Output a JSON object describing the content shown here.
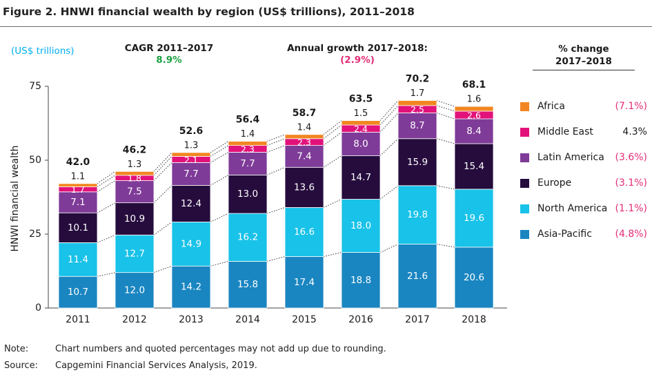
{
  "figure": {
    "title": "Figure 2. HNWI financial wealth by region (US$ trillions), 2011–2018",
    "units": "(US$ trillions)"
  },
  "headers": {
    "cagr_label": "CAGR 2011–2017",
    "cagr_value": "8.9%",
    "annual_label": "Annual growth 2017–2018:",
    "annual_value": "(2.9%)",
    "pct_change_line1": "% change",
    "pct_change_line2": "2017–2018"
  },
  "notes": {
    "note_label": "Note:",
    "note_text": "Chart numbers and quoted percentages may not add up due to rounding.",
    "source_label": "Source:",
    "source_text": "Capgemini Financial Services Analysis, 2019."
  },
  "colors": {
    "Asia-Pacific": "#1a86c1",
    "North America": "#18c2e8",
    "Europe": "#260c3d",
    "Latin America": "#7f3b98",
    "Middle East": "#e2127a",
    "Africa": "#f28621",
    "cagr_green": "#1aa142",
    "decline_red": "#e32b77",
    "units_blue": "#00aeef"
  },
  "chart_data": {
    "type": "bar",
    "stacked": true,
    "categories": [
      "2011",
      "2012",
      "2013",
      "2014",
      "2015",
      "2016",
      "2017",
      "2018"
    ],
    "ylabel": "HNWI financial wealth",
    "ylim": [
      0,
      75
    ],
    "yticks": [
      0,
      25,
      50,
      75
    ],
    "totals": [
      "42.0",
      "46.2",
      "52.6",
      "56.4",
      "58.7",
      "63.5",
      "70.2",
      "68.1"
    ],
    "series": [
      {
        "name": "Asia-Pacific",
        "values": [
          10.7,
          12.0,
          14.2,
          15.8,
          17.4,
          18.8,
          21.6,
          20.6
        ],
        "labels": [
          "10.7",
          "12.0",
          "14.2",
          "15.8",
          "17.4",
          "18.8",
          "21.6",
          "20.6"
        ],
        "change": "(4.8%)"
      },
      {
        "name": "North America",
        "values": [
          11.4,
          12.7,
          14.9,
          16.2,
          16.6,
          18.0,
          19.8,
          19.6
        ],
        "labels": [
          "11.4",
          "12.7",
          "14.9",
          "16.2",
          "16.6",
          "18.0",
          "19.8",
          "19.6"
        ],
        "change": "(1.1%)"
      },
      {
        "name": "Europe",
        "values": [
          10.1,
          10.9,
          12.4,
          13.0,
          13.6,
          14.7,
          15.9,
          15.4
        ],
        "labels": [
          "10.1",
          "10.9",
          "12.4",
          "13.0",
          "13.6",
          "14.7",
          "15.9",
          "15.4"
        ],
        "change": "(3.1%)"
      },
      {
        "name": "Latin America",
        "values": [
          7.1,
          7.5,
          7.7,
          7.7,
          7.4,
          8.0,
          8.7,
          8.4
        ],
        "labels": [
          "7.1",
          "7.5",
          "7.7",
          "7.7",
          "7.4",
          "8.0",
          "8.7",
          "8.4"
        ],
        "change": "(3.6%)"
      },
      {
        "name": "Middle East",
        "values": [
          1.7,
          1.8,
          2.1,
          2.3,
          2.3,
          2.4,
          2.5,
          2.6
        ],
        "labels": [
          "1.7",
          "1.8",
          "2.1",
          "2.3",
          "2.3",
          "2.4",
          "2.5",
          "2.6"
        ],
        "change": "4.3%"
      },
      {
        "name": "Africa",
        "values": [
          1.1,
          1.3,
          1.3,
          1.4,
          1.4,
          1.5,
          1.7,
          1.6
        ],
        "labels": [
          "1.1",
          "1.3",
          "1.3",
          "1.4",
          "1.4",
          "1.5",
          "1.7",
          "1.6"
        ],
        "change": "(7.1%)"
      }
    ],
    "legend_order": [
      "Africa",
      "Middle East",
      "Latin America",
      "Europe",
      "North America",
      "Asia-Pacific"
    ],
    "legend_position": "right",
    "grid": false
  }
}
